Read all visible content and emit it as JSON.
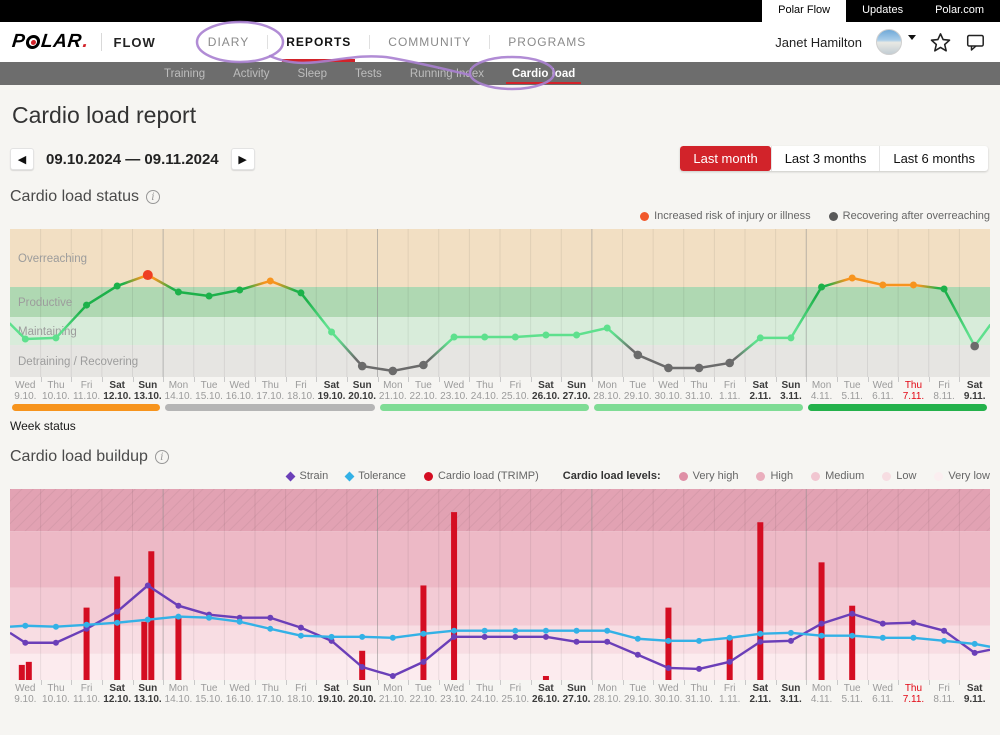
{
  "colors": {
    "accent_red": "#d2232a",
    "annotation_purple": "#a87fd0"
  },
  "topbar": {
    "tabs": [
      {
        "label": "Polar Flow",
        "active": true
      },
      {
        "label": "Updates",
        "active": false
      },
      {
        "label": "Polar.com",
        "active": false
      }
    ]
  },
  "nav": {
    "logo_text_left": "P",
    "logo_text_right": "LAR",
    "logo_period": ".",
    "product": "FLOW",
    "items": [
      {
        "label": "DIARY",
        "active": false
      },
      {
        "label": "REPORTS",
        "active": true
      },
      {
        "label": "COMMUNITY",
        "active": false
      },
      {
        "label": "PROGRAMS",
        "active": false
      }
    ],
    "user_name": "Janet Hamilton"
  },
  "subnav": {
    "items": [
      "Training",
      "Activity",
      "Sleep",
      "Tests",
      "Running Index",
      "Cardio load"
    ],
    "active_index": 5
  },
  "page": {
    "title": "Cardio load report",
    "prev_label": "◀",
    "next_label": "▶",
    "date_range": "09.10.2024 — 09.11.2024",
    "range_buttons": [
      {
        "label": "Last month",
        "active": true
      },
      {
        "label": "Last 3 months",
        "active": false
      },
      {
        "label": "Last 6 months",
        "active": false
      }
    ]
  },
  "status_section": {
    "title": "Cardio load status",
    "legend": [
      {
        "label": "Increased risk of injury or illness",
        "color": "#f1582b"
      },
      {
        "label": "Recovering after overreaching",
        "color": "#595959"
      }
    ],
    "week_status_label": "Week status"
  },
  "buildup_section": {
    "title": "Cardio load buildup",
    "legend": [
      {
        "label": "Strain",
        "color": "#6b3fb8"
      },
      {
        "label": "Tolerance",
        "color": "#33b1e6"
      },
      {
        "label": "Cardio load (TRIMP)",
        "color": "#d40d22"
      }
    ],
    "levels_label": "Cardio load levels:",
    "levels": [
      {
        "label": "Very high",
        "color": "#df8fa6"
      },
      {
        "label": "High",
        "color": "#eaaebd"
      },
      {
        "label": "Medium",
        "color": "#f1c6d1"
      },
      {
        "label": "Low",
        "color": "#f7dde2"
      },
      {
        "label": "Very low",
        "color": "#fbeef0"
      }
    ]
  },
  "chart_data": [
    {
      "type": "line",
      "title": "Cardio load status",
      "ylabel": "training status band (qualitative, % of chart height from bottom)",
      "grid": "vertical per day, darker at week boundaries",
      "bands": [
        {
          "label": "Overreaching",
          "from": 60.8,
          "to": 100,
          "color": "#f2dfc3"
        },
        {
          "label": "Productive",
          "from": 40.5,
          "to": 60.8,
          "color": "#afd8b2"
        },
        {
          "label": "Maintaining",
          "from": 21.6,
          "to": 40.5,
          "color": "#d8ecda"
        },
        {
          "label": "Detraining / Recovering",
          "from": 0,
          "to": 21.6,
          "color": "#e6e5e2"
        }
      ],
      "point_colors": {
        "lightgreen": "#5ee08d",
        "green": "#1db14a",
        "orange": "#f7941e",
        "red": "#ee3e23",
        "gray": "#6b6b6b"
      },
      "edge_start": {
        "v": 36,
        "c": "lightgreen"
      },
      "edge_end": {
        "v": 35,
        "c": "lightgreen"
      },
      "points": [
        {
          "v": 25.7,
          "c": "lightgreen"
        },
        {
          "v": 26.4,
          "c": "lightgreen"
        },
        {
          "v": 48.6,
          "c": "green"
        },
        {
          "v": 61.5,
          "c": "green"
        },
        {
          "v": 68.9,
          "c": "red",
          "lc": "orange"
        },
        {
          "v": 57.4,
          "c": "green"
        },
        {
          "v": 54.7,
          "c": "green"
        },
        {
          "v": 58.8,
          "c": "green"
        },
        {
          "v": 64.9,
          "c": "orange"
        },
        {
          "v": 56.8,
          "c": "green"
        },
        {
          "v": 30.4,
          "c": "lightgreen"
        },
        {
          "v": 7.4,
          "c": "gray"
        },
        {
          "v": 4.1,
          "c": "gray"
        },
        {
          "v": 8.1,
          "c": "gray"
        },
        {
          "v": 27,
          "c": "lightgreen"
        },
        {
          "v": 27,
          "c": "lightgreen"
        },
        {
          "v": 27,
          "c": "lightgreen"
        },
        {
          "v": 28.4,
          "c": "lightgreen"
        },
        {
          "v": 28.4,
          "c": "lightgreen"
        },
        {
          "v": 33.1,
          "c": "lightgreen"
        },
        {
          "v": 14.9,
          "c": "gray"
        },
        {
          "v": 6.1,
          "c": "gray"
        },
        {
          "v": 6.1,
          "c": "gray"
        },
        {
          "v": 9.5,
          "c": "gray"
        },
        {
          "v": 26.4,
          "c": "lightgreen"
        },
        {
          "v": 26.4,
          "c": "lightgreen"
        },
        {
          "v": 60.8,
          "c": "green"
        },
        {
          "v": 66.9,
          "c": "orange"
        },
        {
          "v": 62.2,
          "c": "orange"
        },
        {
          "v": 62.2,
          "c": "orange"
        },
        {
          "v": 59.5,
          "c": "green"
        },
        {
          "v": 20.9,
          "c": "gray",
          "lc": "lightgreen"
        }
      ],
      "week_status_segments": [
        {
          "start": 0,
          "end": 4,
          "color": "#f7941d"
        },
        {
          "start": 5,
          "end": 11,
          "color": "#b5b5b5"
        },
        {
          "start": 12,
          "end": 18,
          "color": "#7fdc95"
        },
        {
          "start": 19,
          "end": 25,
          "color": "#7fdc95"
        },
        {
          "start": 26,
          "end": 31,
          "color": "#24b14b"
        }
      ]
    },
    {
      "type": "bar+line",
      "title": "Cardio load buildup",
      "ylabel": "relative load (% of chart height)",
      "bands": [
        {
          "label": "Very high",
          "from": 77.9,
          "to": 100,
          "color": "#e2a2b3",
          "hatch": true
        },
        {
          "label": "High",
          "from": 48.4,
          "to": 77.9,
          "color": "#edb9c6"
        },
        {
          "label": "Medium",
          "from": 28.4,
          "to": 48.4,
          "color": "#f3cbd5"
        },
        {
          "label": "Low",
          "from": 13.7,
          "to": 28.4,
          "color": "#f8dde3"
        },
        {
          "label": "Very low",
          "from": 0,
          "to": 13.7,
          "color": "#fcebee"
        }
      ],
      "bar_color": "#d40d22",
      "bars": [
        {
          "day": 0,
          "v": [
            7.9,
            9.5
          ]
        },
        {
          "day": 2,
          "v": [
            37.9
          ]
        },
        {
          "day": 3,
          "v": [
            54.2
          ]
        },
        {
          "day": 4,
          "v": [
            30.5,
            67.4
          ]
        },
        {
          "day": 5,
          "v": [
            33.2
          ]
        },
        {
          "day": 11,
          "v": [
            15.3
          ]
        },
        {
          "day": 13,
          "v": [
            49.5
          ]
        },
        {
          "day": 14,
          "v": [
            87.9
          ]
        },
        {
          "day": 17,
          "v": [
            2.1
          ]
        },
        {
          "day": 21,
          "v": [
            37.9
          ]
        },
        {
          "day": 23,
          "v": [
            22.6
          ]
        },
        {
          "day": 24,
          "v": [
            82.6
          ]
        },
        {
          "day": 26,
          "v": [
            61.6
          ]
        },
        {
          "day": 27,
          "v": [
            38.9
          ]
        }
      ],
      "series": [
        {
          "name": "Strain",
          "color": "#6b3fb8",
          "edge_start": 24.7,
          "edge_end": 15.8,
          "values": [
            19.5,
            19.5,
            26.8,
            35.8,
            49.5,
            38.9,
            34.2,
            32.6,
            32.6,
            27.4,
            20.5,
            6.8,
            2.1,
            9.5,
            22.6,
            22.6,
            22.6,
            22.6,
            20,
            20,
            13.2,
            6.3,
            5.8,
            9.5,
            20,
            20.5,
            29.5,
            34.7,
            29.5,
            30,
            25.8,
            14.2
          ]
        },
        {
          "name": "Tolerance",
          "color": "#33b1e6",
          "edge_start": 27.9,
          "edge_end": 17.4,
          "values": [
            28.4,
            27.9,
            28.9,
            30,
            31.6,
            33.2,
            32.6,
            30.5,
            26.8,
            23.2,
            22.6,
            22.6,
            22.1,
            24.2,
            25.8,
            25.8,
            25.8,
            25.8,
            25.8,
            25.8,
            21.6,
            20.5,
            20.5,
            22.1,
            24.2,
            24.7,
            23.2,
            23.2,
            22.1,
            22.1,
            20.5,
            18.9
          ]
        }
      ]
    }
  ],
  "days": [
    {
      "dow": "Wed",
      "date": "9.10."
    },
    {
      "dow": "Thu",
      "date": "10.10."
    },
    {
      "dow": "Fri",
      "date": "11.10."
    },
    {
      "dow": "Sat",
      "date": "12.10.",
      "w": true
    },
    {
      "dow": "Sun",
      "date": "13.10.",
      "w": true
    },
    {
      "dow": "Mon",
      "date": "14.10."
    },
    {
      "dow": "Tue",
      "date": "15.10."
    },
    {
      "dow": "Wed",
      "date": "16.10."
    },
    {
      "dow": "Thu",
      "date": "17.10."
    },
    {
      "dow": "Fri",
      "date": "18.10."
    },
    {
      "dow": "Sat",
      "date": "19.10.",
      "w": true
    },
    {
      "dow": "Sun",
      "date": "20.10.",
      "w": true
    },
    {
      "dow": "Mon",
      "date": "21.10."
    },
    {
      "dow": "Tue",
      "date": "22.10."
    },
    {
      "dow": "Wed",
      "date": "23.10."
    },
    {
      "dow": "Thu",
      "date": "24.10."
    },
    {
      "dow": "Fri",
      "date": "25.10."
    },
    {
      "dow": "Sat",
      "date": "26.10.",
      "w": true
    },
    {
      "dow": "Sun",
      "date": "27.10.",
      "w": true
    },
    {
      "dow": "Mon",
      "date": "28.10."
    },
    {
      "dow": "Tue",
      "date": "29.10."
    },
    {
      "dow": "Wed",
      "date": "30.10."
    },
    {
      "dow": "Thu",
      "date": "31.10."
    },
    {
      "dow": "Fri",
      "date": "1.11."
    },
    {
      "dow": "Sat",
      "date": "2.11.",
      "w": true
    },
    {
      "dow": "Sun",
      "date": "3.11.",
      "w": true
    },
    {
      "dow": "Mon",
      "date": "4.11."
    },
    {
      "dow": "Tue",
      "date": "5.11."
    },
    {
      "dow": "Wed",
      "date": "6.11."
    },
    {
      "dow": "Thu",
      "date": "7.11.",
      "t": true
    },
    {
      "dow": "Fri",
      "date": "8.11."
    },
    {
      "dow": "Sat",
      "date": "9.11.",
      "w": true
    }
  ]
}
